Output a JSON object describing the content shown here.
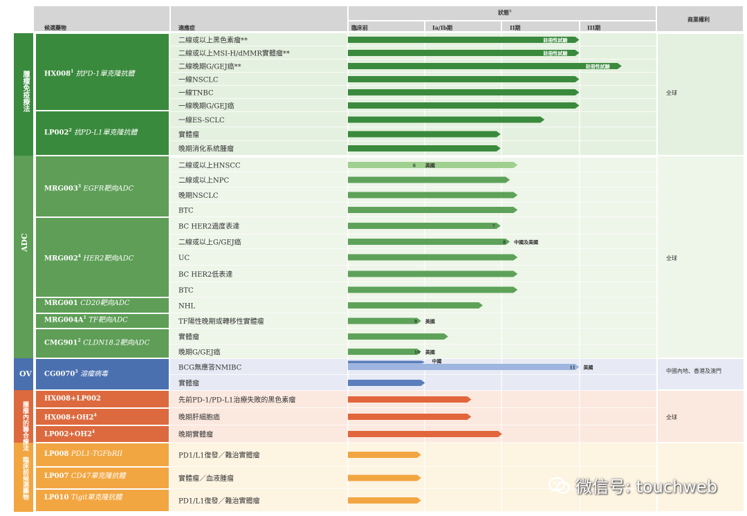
{
  "headers": {
    "candidates": "候選藥物",
    "indication": "適應症",
    "status": "狀態",
    "status_sup": "5",
    "rights": "商業權利",
    "phases": [
      "臨床前",
      "Ia/Ib期",
      "II期",
      "III期"
    ]
  },
  "colors": {
    "io": "#3a8a3d",
    "adc": "#5e9e57",
    "ov": "#4a70b0",
    "combo": "#dc6a3e",
    "early": "#f2a641",
    "bar_io": "#3a8a3d",
    "bar_adc": "#5ea25a",
    "bar_adc_light": "#9fd08f",
    "bar_ov": "#5b7fbd",
    "bar_ov_light": "#9db5df",
    "bar_combo": "#e2663b",
    "bar_early": "#f2a641"
  },
  "categories": [
    {
      "label": "腫瘤免疫療法",
      "rights": "全球"
    },
    {
      "label": "ADC",
      "rights": "全球"
    },
    {
      "label": "OV",
      "rights": "中國內地、香港及澳門"
    },
    {
      "label": "腫瘤內的聯合療法",
      "rights": "全球"
    },
    {
      "label": "臨床前候選藥物",
      "rights": ""
    }
  ],
  "drugs": [
    {
      "code": "HX008",
      "sup": "1",
      "desc": "抗PD-1單克隆抗體"
    },
    {
      "code": "LP002",
      "sup": "2",
      "desc": "抗PD-L1單克隆抗體"
    },
    {
      "code": "MRG003",
      "sup": "3",
      "desc": "EGFR靶向ADC"
    },
    {
      "code": "MRG002",
      "sup": "4",
      "desc": "HER2靶向ADC"
    },
    {
      "code": "MRG001",
      "sup": "",
      "desc": "CD20靶向ADC"
    },
    {
      "code": "MRG004A",
      "sup": "1",
      "desc": "TF靶向ADC"
    },
    {
      "code": "CMG901",
      "sup": "2",
      "desc": "CLDN18.2靶向ADC"
    },
    {
      "code": "CG0070",
      "sup": "3",
      "desc": "溶瘤病毒"
    },
    {
      "code": "HX008+LP002",
      "sup": "",
      "desc": ""
    },
    {
      "code": "HX008+OH2",
      "sup": "4",
      "desc": ""
    },
    {
      "code": "LP002+OH2",
      "sup": "4",
      "desc": ""
    },
    {
      "code": "LP008",
      "sup": "",
      "desc": "PDL1-TGFbRII"
    },
    {
      "code": "LP007",
      "sup": "",
      "desc": "CD47單克隆抗體"
    },
    {
      "code": "LP010",
      "sup": "",
      "desc": "Tigit單克隆抗體"
    }
  ],
  "chart_data": {
    "type": "bar",
    "x_categories": [
      "臨床前",
      "Ia/Ib期",
      "II期",
      "III期"
    ],
    "rows": [
      {
        "indication": "二線或以上黑色素瘤**",
        "progress": 3.0,
        "label": "註冊性試驗"
      },
      {
        "indication": "二線或以上MSI-H/dMMR實體瘤**",
        "progress": 3.0,
        "label": "註冊性試驗"
      },
      {
        "indication": "二線晚期G/GEJ癌**",
        "progress": 3.55,
        "label": "註冊性試驗"
      },
      {
        "indication": "一線NSCLC",
        "progress": 3.0
      },
      {
        "indication": "一線TNBC",
        "progress": 3.0
      },
      {
        "indication": "一線晚期G/GEJ癌",
        "progress": 3.0
      },
      {
        "indication": "一線ES-SCLC",
        "progress": 2.55
      },
      {
        "indication": "實體瘤",
        "progress": 1.98
      },
      {
        "indication": "晚期消化系統腫瘤",
        "progress": 1.98
      },
      {
        "indication": "二線或以上HNSCC",
        "progress": 2.2,
        "inner": 0.95,
        "marker": "6",
        "note": "美國"
      },
      {
        "indication": "二線或以上NPC",
        "progress": 2.1
      },
      {
        "indication": "晚期NSCLC",
        "progress": 2.2
      },
      {
        "indication": "BTC",
        "progress": 2.2
      },
      {
        "indication": "BC HER2過度表達",
        "progress": 1.98,
        "marker": "7"
      },
      {
        "indication": "二線或以上G/GEJ癌",
        "progress": 2.1,
        "marker": "8",
        "note": "中國及美國"
      },
      {
        "indication": "UC",
        "progress": 2.2
      },
      {
        "indication": "BC HER2低表達",
        "progress": 2.2
      },
      {
        "indication": "BTC",
        "progress": 2.2
      },
      {
        "indication": "NHL",
        "progress": 1.75
      },
      {
        "indication": "TF陽性晚期或轉移性實體瘤",
        "progress": 0.95,
        "marker": "9",
        "note": "美國"
      },
      {
        "indication": "實體瘤",
        "progress": 1.3
      },
      {
        "indication": "晚期G/GEJ癌",
        "progress": 0.95,
        "marker": "10",
        "note": "美國"
      },
      {
        "indication": "BCG無應答NMIBC",
        "progress": 3.0,
        "inner": 1.0,
        "marker": "11",
        "note": "美國",
        "note2": "中國"
      },
      {
        "indication": "實體瘤",
        "progress": 1.0
      },
      {
        "indication": "先前PD-1/PD-L1治療失敗的黑色素瘤",
        "progress": 1.6
      },
      {
        "indication": "晚期肝細胞癌",
        "progress": 1.6
      },
      {
        "indication": "晚期實體瘤",
        "progress": 2.0
      },
      {
        "indication": "PD1/L1復發／難治實體瘤",
        "progress": 0.95
      },
      {
        "indication": "實體瘤／血液腫瘤",
        "progress": 0.95
      },
      {
        "indication": "PD1/L1復發／難治實體瘤",
        "progress": 0.95
      }
    ]
  },
  "watermark": {
    "text": "微信号: touchweb",
    "icon": "wechat-icon"
  }
}
